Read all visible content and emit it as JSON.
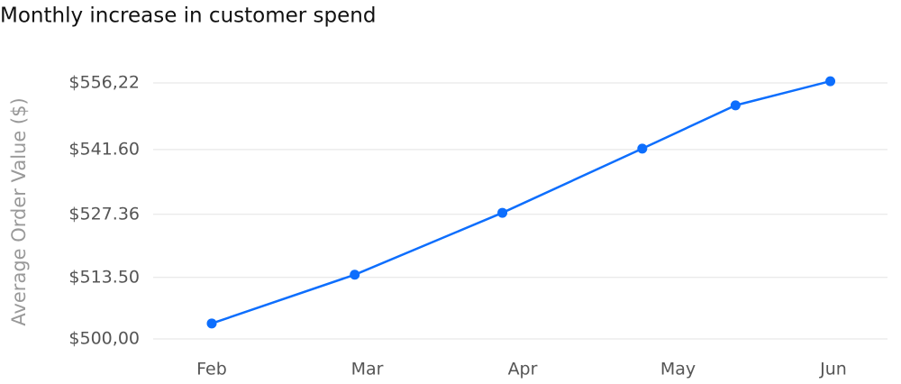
{
  "chart_data": {
    "type": "line",
    "title": "Monthly increase in customer spend",
    "y_label": "Average Order Value ($)",
    "x": [
      0,
      0.92,
      1.87,
      2.77,
      3.37,
      3.98
    ],
    "series": [
      {
        "name": "Average Order Value",
        "color": "#0d6efd",
        "values": [
          503.4,
          514.1,
          527.7,
          541.8,
          551.3,
          556.6
        ]
      }
    ],
    "xlim": [
      0,
      4
    ],
    "xticks": [
      {
        "value": 0,
        "label": "Feb"
      },
      {
        "value": 1,
        "label": "Mar"
      },
      {
        "value": 2,
        "label": "Apr"
      },
      {
        "value": 3,
        "label": "May"
      },
      {
        "value": 4,
        "label": "Jun"
      }
    ],
    "ylim": [
      500,
      556.22
    ],
    "yticks": [
      {
        "value": 500,
        "label": "$500,00"
      },
      {
        "value": 513.5,
        "label": "$513.50"
      },
      {
        "value": 527.36,
        "label": "$527.36"
      },
      {
        "value": 541.6,
        "label": "$541.60"
      },
      {
        "value": 556.22,
        "label": "$556,22"
      }
    ],
    "grid": true
  }
}
